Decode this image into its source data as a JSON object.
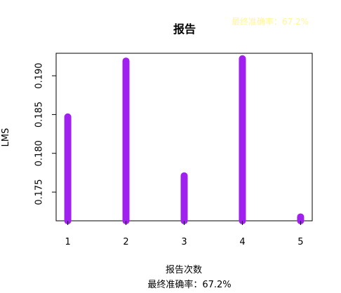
{
  "chart_data": {
    "type": "bar",
    "title": "报告",
    "watermark_text": "最终准确率：67.2%",
    "xlabel": "报告次数",
    "ylabel": "LMS",
    "footer_text": "最终准确率：67.2%",
    "x": [
      1,
      2,
      3,
      4,
      5
    ],
    "x_tick_labels": [
      "1",
      "2",
      "3",
      "4",
      "5"
    ],
    "values": [
      0.1847,
      0.1919,
      0.1771,
      0.1922,
      0.1718
    ],
    "y_ticks": [
      0.175,
      0.18,
      0.185,
      0.19
    ],
    "y_tick_labels": [
      "0.175",
      "0.180",
      "0.185",
      "0.190"
    ],
    "xlim": [
      0.8,
      5.2
    ],
    "ylim": [
      0.1713,
      0.1929
    ],
    "bar_color": "#a020f0",
    "grid": false,
    "legend": "none"
  }
}
